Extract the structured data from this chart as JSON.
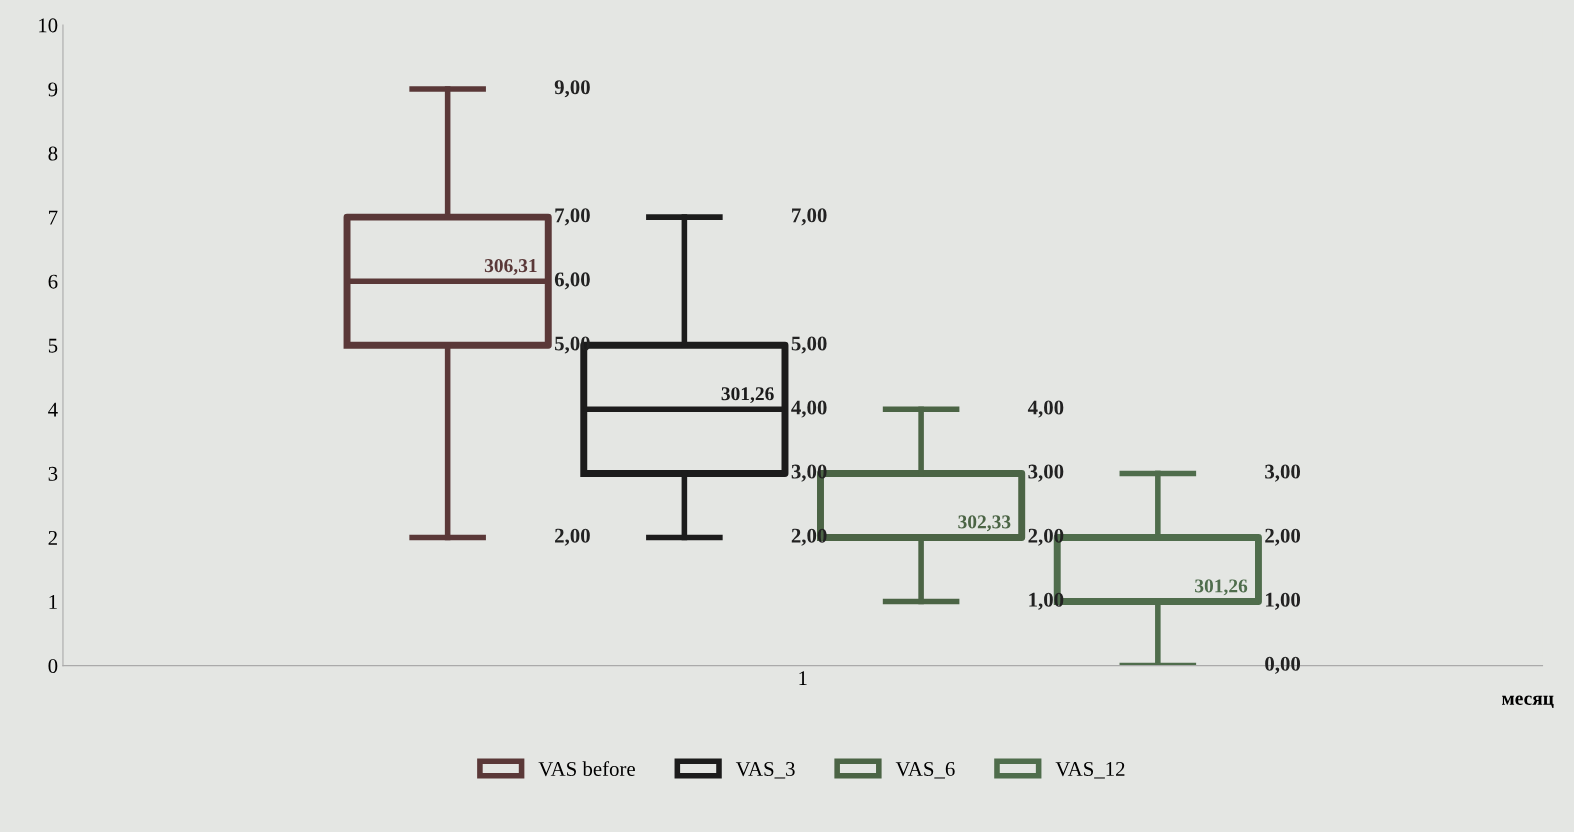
{
  "chart_data": {
    "type": "box",
    "categories": [
      "1"
    ],
    "xlabel": "месяц",
    "ylim": [
      0,
      10
    ],
    "yticks": [
      0,
      1,
      2,
      3,
      4,
      5,
      6,
      7,
      8,
      9,
      10
    ],
    "grid": false,
    "legend": "bottom",
    "series": [
      {
        "name": "VAS before",
        "color": "#5a3838",
        "boxes": [
          {
            "low": 2,
            "q1": 5,
            "median": 6,
            "q3": 7,
            "high": 9
          }
        ]
      },
      {
        "name": "VAS_3",
        "color": "#1c1c1c",
        "boxes": [
          {
            "low": 2,
            "q1": 3,
            "median": 4,
            "q3": 5,
            "high": 7
          }
        ]
      },
      {
        "name": "VAS_6",
        "color": "#4b6445",
        "boxes": [
          {
            "low": 1,
            "q1": 2,
            "median": 2,
            "q3": 3,
            "high": 4
          }
        ]
      },
      {
        "name": "VAS_12",
        "color": "#4f6d4c",
        "boxes": [
          {
            "low": 0,
            "q1": 1,
            "median": 1,
            "q3": 2,
            "high": 3
          }
        ]
      }
    ],
    "annotations": [
      "306,31",
      "301,26",
      "302,33",
      "301,26",
      "9,00",
      "7,00",
      "6,00",
      "5,00",
      "2,00",
      "7,00",
      "5,00",
      "4,00",
      "3,00",
      "2,00",
      "4,00",
      "3,00",
      "2,00",
      "1,00",
      "3,00",
      "2,00",
      "1,00",
      "0,00"
    ]
  }
}
